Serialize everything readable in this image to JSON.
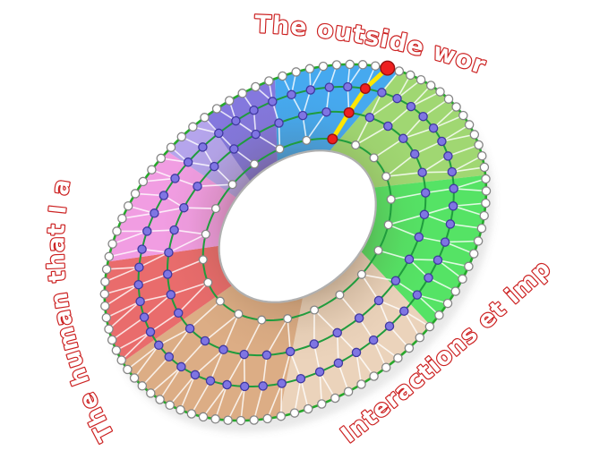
{
  "labels": {
    "top": "The outside world",
    "right": "Interactions et impact",
    "left": "The human that I am"
  },
  "label_style": {
    "fill": "#ffffff",
    "outline": "#cc2222"
  },
  "wheel": {
    "sectors": [
      {
        "name": "blue",
        "color": "#46a9ef",
        "start": -13,
        "end": 26
      },
      {
        "name": "green-light",
        "color": "#a0d772",
        "start": 26,
        "end": 78
      },
      {
        "name": "green-bright",
        "color": "#55e365",
        "start": 78,
        "end": 128
      },
      {
        "name": "tan-light",
        "color": "#ebd3bb",
        "start": 128,
        "end": 178
      },
      {
        "name": "tan-dark",
        "color": "#dcad85",
        "start": 178,
        "end": 238
      },
      {
        "name": "red",
        "color": "#e96c6c",
        "start": 238,
        "end": 274
      },
      {
        "name": "pink",
        "color": "#f19de2",
        "start": 274,
        "end": 311
      },
      {
        "name": "purple-light",
        "color": "#b5a5ec",
        "start": 311,
        "end": 325
      },
      {
        "name": "purple-dark",
        "color": "#8478de",
        "start": 325,
        "end": 347
      }
    ],
    "rings": [
      {
        "name": "outer-ring",
        "node_count": 88,
        "node_fill": "#ffffff",
        "node_stroke": "#858585",
        "node_radius": 4.6
      },
      {
        "name": "second-ring",
        "node_count": 52,
        "node_fill": "#7f75e3",
        "node_stroke": "#4038a0",
        "node_radius": 4.6
      },
      {
        "name": "third-ring",
        "node_count": 34,
        "node_fill": "#7f75e3",
        "node_stroke": "#4038a0",
        "node_radius": 4.6
      },
      {
        "name": "inner-ring",
        "node_count": 22,
        "node_fill": "#ffffff",
        "node_stroke": "#858585",
        "node_radius": 4.4
      }
    ],
    "style": {
      "outer_border_color": "#25a82a",
      "ring_line_color": "#1f9c3d",
      "mesh_line_color": "rgba(255,255,255,0.8)",
      "hole_fill": "#ffffff",
      "hole_stroke": "#b0b0b0"
    },
    "highlight": {
      "angle_deg": 22,
      "path_color": "#ffe600",
      "node_fill": "#ee2020",
      "node_stroke": "#991111",
      "outer_node_radius": 7.8,
      "inner_node_radius": 5.3
    }
  }
}
